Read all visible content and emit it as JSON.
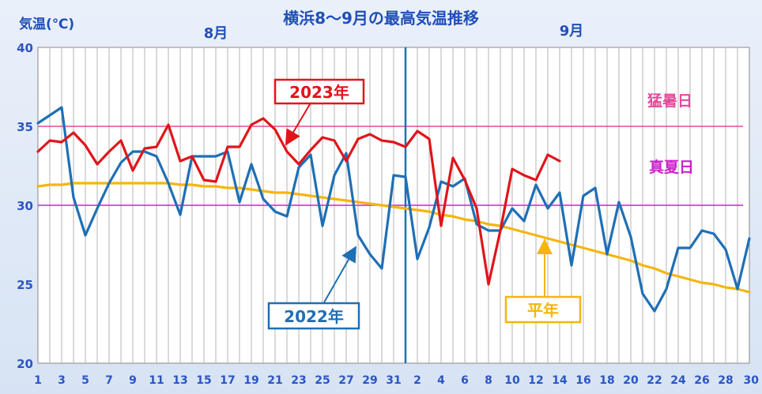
{
  "chart_data": {
    "type": "line",
    "title": "横浜8～9月の最高気温推移",
    "ylabel": "気温(℃)",
    "ylim": [
      20,
      40
    ],
    "yticks": [
      "40",
      "35",
      "30",
      "25",
      "20"
    ],
    "xlim": [
      1,
      61
    ],
    "x_ticks": [
      {
        "day": 1,
        "label": "1"
      },
      {
        "day": 3,
        "label": "3"
      },
      {
        "day": 5,
        "label": "5"
      },
      {
        "day": 7,
        "label": "7"
      },
      {
        "day": 9,
        "label": "9"
      },
      {
        "day": 11,
        "label": "11"
      },
      {
        "day": 13,
        "label": "13"
      },
      {
        "day": 15,
        "label": "15"
      },
      {
        "day": 17,
        "label": "17"
      },
      {
        "day": 19,
        "label": "19"
      },
      {
        "day": 21,
        "label": "21"
      },
      {
        "day": 23,
        "label": "23"
      },
      {
        "day": 25,
        "label": "25"
      },
      {
        "day": 27,
        "label": "27"
      },
      {
        "day": 29,
        "label": "29"
      },
      {
        "day": 31,
        "label": "31"
      },
      {
        "day": 33,
        "label": "2"
      },
      {
        "day": 35,
        "label": "4"
      },
      {
        "day": 37,
        "label": "6"
      },
      {
        "day": 39,
        "label": "8"
      },
      {
        "day": 41,
        "label": "10"
      },
      {
        "day": 43,
        "label": "12"
      },
      {
        "day": 45,
        "label": "14"
      },
      {
        "day": 47,
        "label": "16"
      },
      {
        "day": 49,
        "label": "18"
      },
      {
        "day": 51,
        "label": "20"
      },
      {
        "day": 53,
        "label": "22"
      },
      {
        "day": 55,
        "label": "24"
      },
      {
        "day": 57,
        "label": "26"
      },
      {
        "day": 59,
        "label": "28"
      },
      {
        "day": 61,
        "label": "30"
      }
    ],
    "month_labels": [
      {
        "text": "8月",
        "day": 16
      },
      {
        "text": "9月",
        "day": 46
      }
    ],
    "month_divider_day": 32,
    "reference_lines": [
      {
        "name": "猛暑日",
        "value": 35,
        "color": "#e8489a"
      },
      {
        "name": "真夏日",
        "value": 30,
        "color": "#cc22cc"
      }
    ],
    "series": [
      {
        "name": "2022年",
        "color": "#1f6fb5",
        "values": [
          35.2,
          35.7,
          36.2,
          30.5,
          28.1,
          29.8,
          31.4,
          32.7,
          33.4,
          33.4,
          33.1,
          31.4,
          29.4,
          33.1,
          33.1,
          33.1,
          33.4,
          30.2,
          32.6,
          30.4,
          29.6,
          29.3,
          32.4,
          33.2,
          28.7,
          31.9,
          33.3,
          28.1,
          26.9,
          26.0,
          31.9,
          31.8,
          26.6,
          28.6,
          31.5,
          31.2,
          31.7,
          28.8,
          28.4,
          28.4,
          29.8,
          29.0,
          31.3,
          29.8,
          30.8,
          26.2,
          30.6,
          31.1,
          26.9,
          30.2,
          28.0,
          24.4,
          23.3,
          24.7,
          27.3,
          27.3,
          28.4,
          28.2,
          27.2,
          24.7,
          27.9
        ]
      },
      {
        "name": "2023年",
        "color": "#e0151b",
        "values": [
          33.4,
          34.1,
          34.0,
          34.6,
          33.8,
          32.6,
          33.4,
          34.1,
          32.2,
          33.6,
          33.7,
          35.1,
          32.8,
          33.1,
          31.6,
          31.5,
          33.7,
          33.7,
          35.1,
          35.5,
          34.8,
          33.4,
          32.6,
          33.5,
          34.3,
          34.1,
          32.8,
          34.2,
          34.5,
          34.1,
          34.0,
          33.7,
          34.7,
          34.2,
          28.7,
          33.0,
          31.6,
          29.8,
          25.0,
          28.4,
          32.3,
          31.9,
          31.6,
          33.2,
          32.8
        ]
      },
      {
        "name": "平年",
        "color": "#f6b50e",
        "values": [
          31.2,
          31.3,
          31.3,
          31.4,
          31.4,
          31.4,
          31.4,
          31.4,
          31.4,
          31.4,
          31.4,
          31.4,
          31.3,
          31.3,
          31.2,
          31.2,
          31.1,
          31.1,
          31.0,
          30.9,
          30.8,
          30.8,
          30.7,
          30.6,
          30.5,
          30.4,
          30.3,
          30.2,
          30.1,
          30.0,
          29.9,
          29.8,
          29.7,
          29.6,
          29.4,
          29.3,
          29.1,
          29.0,
          28.8,
          28.7,
          28.5,
          28.3,
          28.1,
          27.9,
          27.7,
          27.5,
          27.3,
          27.1,
          26.9,
          26.7,
          26.5,
          26.2,
          26.0,
          25.7,
          25.5,
          25.3,
          25.1,
          25.0,
          24.8,
          24.7,
          24.5
        ]
      }
    ],
    "labels": {
      "s2023": "2023年",
      "s2022": "2022年",
      "normal": "平年",
      "mousho": "猛暑日",
      "manatsu": "真夏日"
    },
    "colors": {
      "grid": "#b5b5b5",
      "divider": "#1f6fb5",
      "tick_text": "#2a55c4",
      "title_text": "#1f4fb8"
    }
  }
}
